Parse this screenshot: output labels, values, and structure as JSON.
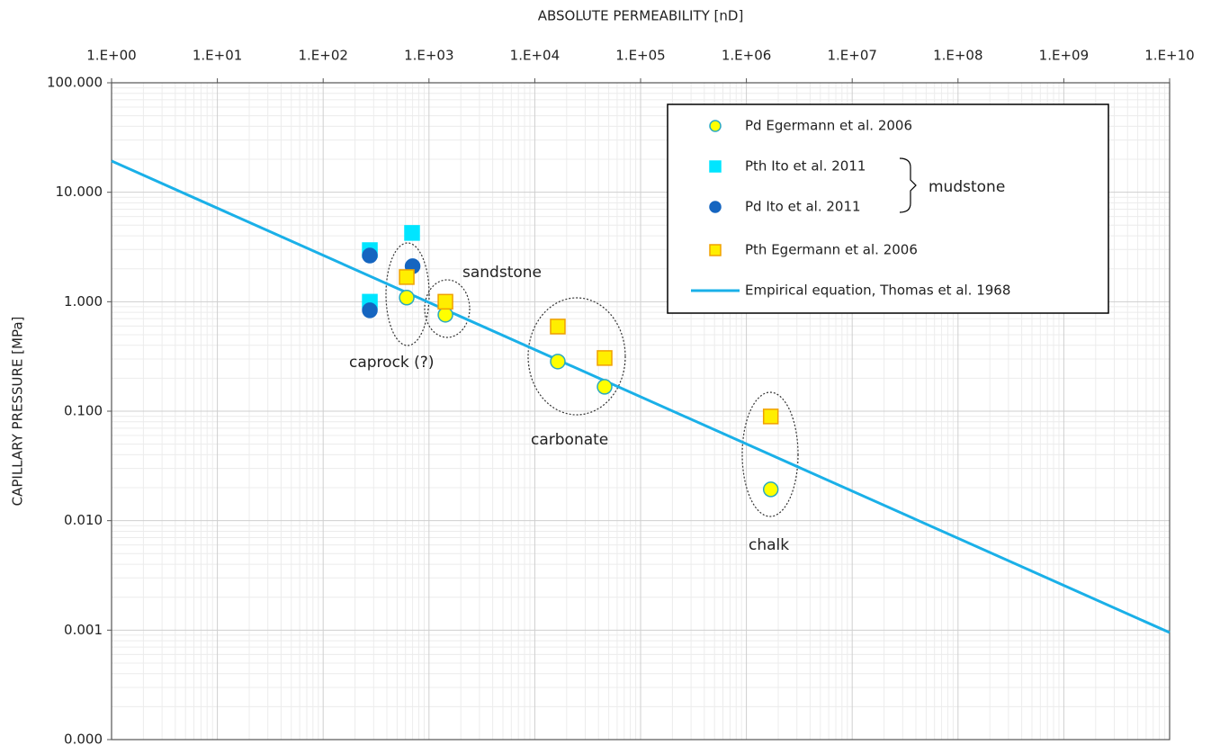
{
  "chart_data": {
    "type": "scatter",
    "x_label": "ABSOLUTE PERMEABILITY [nD]",
    "y_label": "CAPILLARY PRESSURE [MPa]",
    "xscale": "log",
    "yscale": "log",
    "grid": true,
    "minor_grid": true,
    "legend": "upper right",
    "xlim": [
      1,
      10000000000.0
    ],
    "xticks": [
      {
        "value": 1,
        "label": "1.E+00"
      },
      {
        "value": 10,
        "label": "1.E+01"
      },
      {
        "value": 100,
        "label": "1.E+02"
      },
      {
        "value": 1000,
        "label": "1.E+03"
      },
      {
        "value": 10000,
        "label": "1.E+04"
      },
      {
        "value": 100000,
        "label": "1.E+05"
      },
      {
        "value": 1000000,
        "label": "1.E+06"
      },
      {
        "value": 10000000,
        "label": "1.E+07"
      },
      {
        "value": 100000000,
        "label": "1.E+08"
      },
      {
        "value": 1000000000,
        "label": "1.E+09"
      },
      {
        "value": 10000000000,
        "label": "1.E+10"
      }
    ],
    "ylim": [
      0.0001,
      100
    ],
    "yticks": [
      {
        "value": 100,
        "label": "100.000"
      },
      {
        "value": 10,
        "label": "10.000"
      },
      {
        "value": 1,
        "label": "1.000"
      },
      {
        "value": 0.1,
        "label": "0.100"
      },
      {
        "value": 0.01,
        "label": "0.010"
      },
      {
        "value": 0.001,
        "label": "0.001"
      },
      {
        "value": 0.0001,
        "label": "0.000"
      }
    ],
    "series": [
      {
        "name": "Pd Egermann et al. 2006",
        "marker": "circle",
        "color": "#ffff00",
        "edgecolor": "#2aa9c0",
        "x": [
          616,
          1430,
          16500,
          45700,
          1700000
        ],
        "values": [
          1.09,
          0.76,
          0.284,
          0.167,
          0.0193
        ]
      },
      {
        "name": "Pth Ito et al. 2011",
        "marker": "square",
        "color": "#00e5ff",
        "edgecolor": "#00e5ff",
        "x": [
          276,
          692,
          276
        ],
        "values": [
          2.96,
          4.25,
          1.0
        ]
      },
      {
        "name": "Pd Ito et al. 2011",
        "marker": "circle",
        "color": "#1565c0",
        "edgecolor": "#1565c0",
        "x": [
          276,
          700,
          276
        ],
        "values": [
          2.64,
          2.11,
          0.834
        ]
      },
      {
        "name": "Pth Egermann et al. 2006",
        "marker": "square",
        "color": "#ffee00",
        "edgecolor": "#f0a000",
        "x": [
          616,
          1430,
          16500,
          45700,
          1700000
        ],
        "values": [
          1.68,
          1.0,
          0.593,
          0.306,
          0.0895
        ]
      },
      {
        "name": "Empirical equation, Thomas et al. 1968",
        "marker": "line",
        "color": "#1ab0e8",
        "x": [
          1,
          10000000000
        ],
        "values": [
          19.3,
          0.00095
        ]
      }
    ],
    "legend_group_label": "mudstone",
    "annotations": [
      "sandstone",
      "caprock (?)",
      "carbonate",
      "chalk"
    ]
  }
}
